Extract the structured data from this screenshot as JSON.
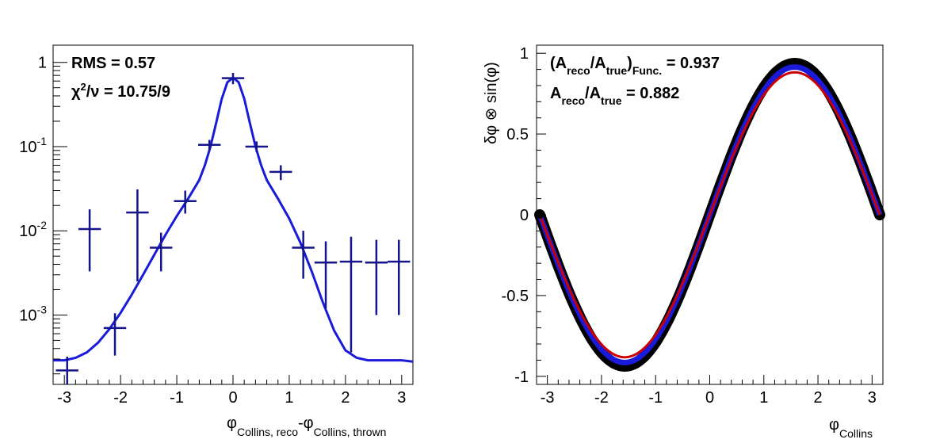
{
  "chart_data": [
    {
      "type": "scatter",
      "log_y": true,
      "xlim": [
        -3.2,
        3.2
      ],
      "ylim": [
        0.00015,
        1.6
      ],
      "x_ticks": [
        -3,
        -2,
        -1,
        0,
        1,
        2,
        3
      ],
      "x_tick_labels": [
        "-3",
        "-2",
        "-1",
        "0",
        "1",
        "2",
        "3"
      ],
      "y_tick_labels": [
        {
          "value": 1,
          "base": "1",
          "exp": ""
        },
        {
          "value": 0.1,
          "base": "10",
          "exp": "-1"
        },
        {
          "value": 0.01,
          "base": "10",
          "exp": "-2"
        },
        {
          "value": 0.001,
          "base": "10",
          "exp": "-3"
        }
      ],
      "xlabel": {
        "main": "φ",
        "sub1": "Collins, reco",
        "mid": "-φ",
        "sub2": "Collins, thrown"
      },
      "annotations": {
        "rms": "RMS = 0.57",
        "chi_sym": "χ",
        "chi_exp": "2",
        "chi_rest": "/ν = 10.75/9"
      },
      "points": [
        {
          "x": -2.95,
          "y": 0.00022,
          "yerr_lo": 0.00015,
          "yerr_hi": 0.00032,
          "xerr": 0.2
        },
        {
          "x": -2.55,
          "y": 0.0105,
          "yerr_lo": 0.0033,
          "yerr_hi": 0.018,
          "xerr": 0.2
        },
        {
          "x": -1.7,
          "y": 0.0165,
          "yerr_lo": 0.0025,
          "yerr_hi": 0.031,
          "xerr": 0.2
        },
        {
          "x": -2.1,
          "y": 0.0007,
          "yerr_lo": 0.00033,
          "yerr_hi": 0.00105,
          "xerr": 0.2
        },
        {
          "x": -1.28,
          "y": 0.0063,
          "yerr_lo": 0.0033,
          "yerr_hi": 0.0095,
          "xerr": 0.2
        },
        {
          "x": -0.85,
          "y": 0.0225,
          "yerr_lo": 0.016,
          "yerr_hi": 0.03,
          "xerr": 0.2
        },
        {
          "x": -0.42,
          "y": 0.105,
          "yerr_lo": 0.09,
          "yerr_hi": 0.12,
          "xerr": 0.2
        },
        {
          "x": 0.0,
          "y": 0.65,
          "yerr_lo": 0.55,
          "yerr_hi": 0.75,
          "xerr": 0.2
        },
        {
          "x": 0.42,
          "y": 0.1,
          "yerr_lo": 0.086,
          "yerr_hi": 0.115,
          "xerr": 0.2
        },
        {
          "x": 0.85,
          "y": 0.05,
          "yerr_lo": 0.04,
          "yerr_hi": 0.06,
          "xerr": 0.2
        },
        {
          "x": 1.25,
          "y": 0.0063,
          "yerr_lo": 0.0027,
          "yerr_hi": 0.01,
          "xerr": 0.2
        },
        {
          "x": 1.65,
          "y": 0.0042,
          "yerr_lo": 0.0012,
          "yerr_hi": 0.0075,
          "xerr": 0.2
        },
        {
          "x": 2.1,
          "y": 0.0043,
          "yerr_lo": 0.00036,
          "yerr_hi": 0.0085,
          "xerr": 0.2
        },
        {
          "x": 2.55,
          "y": 0.0042,
          "yerr_lo": 0.001,
          "yerr_hi": 0.0078,
          "xerr": 0.2
        },
        {
          "x": 2.95,
          "y": 0.0043,
          "yerr_lo": 0.001,
          "yerr_hi": 0.0078,
          "xerr": 0.2
        }
      ],
      "fit_curve": {
        "type": "line",
        "x": [
          -3.2,
          -3.0,
          -2.8,
          -2.6,
          -2.4,
          -2.2,
          -2.0,
          -1.8,
          -1.6,
          -1.4,
          -1.2,
          -1.0,
          -0.8,
          -0.6,
          -0.5,
          -0.4,
          -0.3,
          -0.2,
          -0.1,
          0.0,
          0.1,
          0.2,
          0.3,
          0.4,
          0.5,
          0.6,
          0.8,
          1.0,
          1.2,
          1.4,
          1.6,
          1.8,
          2.0,
          2.2,
          2.4,
          2.6,
          2.8,
          3.0,
          3.2
        ],
        "y": [
          0.00029,
          0.00029,
          0.00031,
          0.00036,
          0.00047,
          0.00068,
          0.00106,
          0.00175,
          0.003,
          0.0052,
          0.009,
          0.015,
          0.024,
          0.04,
          0.06,
          0.1,
          0.19,
          0.37,
          0.58,
          0.66,
          0.58,
          0.37,
          0.19,
          0.1,
          0.06,
          0.04,
          0.024,
          0.014,
          0.0072,
          0.0033,
          0.0014,
          0.00065,
          0.00038,
          0.00031,
          0.00029,
          0.00029,
          0.00029,
          0.00029,
          0.00028
        ],
        "color": "#1a1ad9"
      },
      "point_color": "#14148c"
    },
    {
      "type": "line",
      "xlim": [
        -3.2,
        3.2
      ],
      "ylim": [
        -1.05,
        1.05
      ],
      "x_ticks": [
        -3,
        -2,
        -1,
        0,
        1,
        2,
        3
      ],
      "x_tick_labels": [
        "-3",
        "-2",
        "-1",
        "0",
        "1",
        "2",
        "3"
      ],
      "y_ticks": [
        -1,
        -0.5,
        0,
        0.5,
        1
      ],
      "y_tick_labels": [
        "-1",
        "-0.5",
        "0",
        "0.5",
        "1"
      ],
      "xlabel": {
        "main": "φ",
        "sub": "Collins"
      },
      "ylabel": "δφ ⊗ sin(φ)",
      "annotations": {
        "l1_open": "(A",
        "l1_sub1": "reco",
        "l1_mid": "/A",
        "l1_sub2": "true",
        "l1_close": ")",
        "l1_sub3": "Func.",
        "l1_val": " = 0.937",
        "l2_a": "A",
        "l2_sub1": "reco",
        "l2_mid": "/A",
        "l2_sub2": "true",
        "l2_val": " = 0.882"
      },
      "series": [
        {
          "amplitude": 0.937,
          "color": "#000000"
        },
        {
          "amplitude": 0.915,
          "color": "#1a1ad9"
        },
        {
          "amplitude": 0.882,
          "color": "#cc0000"
        }
      ],
      "x_range": [
        -3.14159,
        3.14159
      ]
    }
  ]
}
